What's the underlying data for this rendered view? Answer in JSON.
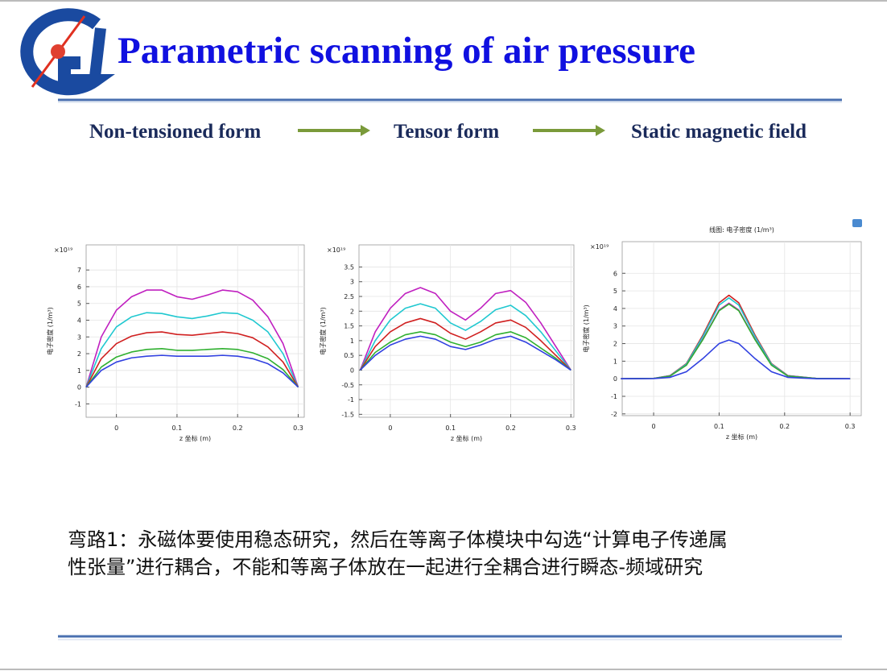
{
  "header": {
    "title": "Parametric scanning of air pressure"
  },
  "flow": [
    "Non-tensioned form",
    "Tensor form",
    "Static magnetic field"
  ],
  "chart_data": [
    {
      "type": "line",
      "multiplier": "×10¹⁹",
      "ylabel": "电子密度 (1/m³)",
      "xlabel": "z 坐标 (m)",
      "x": [
        -0.05,
        -0.025,
        0,
        0.025,
        0.05,
        0.075,
        0.1,
        0.125,
        0.15,
        0.175,
        0.2,
        0.225,
        0.25,
        0.275,
        0.3
      ],
      "series": [
        {
          "color": "#c020c0",
          "values": [
            0,
            3.0,
            4.6,
            5.4,
            5.8,
            5.8,
            5.4,
            5.25,
            5.5,
            5.8,
            5.7,
            5.2,
            4.2,
            2.6,
            0
          ]
        },
        {
          "color": "#20c8d0",
          "values": [
            0,
            2.3,
            3.6,
            4.2,
            4.45,
            4.4,
            4.2,
            4.1,
            4.25,
            4.45,
            4.4,
            4.0,
            3.3,
            2.0,
            0
          ]
        },
        {
          "color": "#d02020",
          "values": [
            0,
            1.7,
            2.6,
            3.05,
            3.25,
            3.3,
            3.15,
            3.1,
            3.2,
            3.3,
            3.2,
            2.95,
            2.4,
            1.5,
            0
          ]
        },
        {
          "color": "#30b030",
          "values": [
            0,
            1.2,
            1.8,
            2.1,
            2.25,
            2.3,
            2.2,
            2.2,
            2.25,
            2.3,
            2.25,
            2.05,
            1.7,
            1.05,
            0
          ]
        },
        {
          "color": "#3040e0",
          "values": [
            0,
            1.0,
            1.5,
            1.75,
            1.85,
            1.9,
            1.85,
            1.85,
            1.85,
            1.9,
            1.85,
            1.7,
            1.4,
            0.85,
            0
          ]
        }
      ],
      "xlim": [
        -0.05,
        0.31
      ],
      "ylim": [
        -1.8,
        8.5
      ],
      "xticks": [
        0,
        0.1,
        0.2,
        0.3
      ],
      "yticks": [
        -1,
        0,
        1,
        2,
        3,
        4,
        5,
        6,
        7
      ],
      "grid": true
    },
    {
      "type": "line",
      "multiplier": "×10¹⁹",
      "ylabel": "电子密度 (1/m³)",
      "xlabel": "z 坐标 (m)",
      "x": [
        -0.05,
        -0.025,
        0,
        0.025,
        0.05,
        0.075,
        0.1,
        0.125,
        0.15,
        0.175,
        0.2,
        0.225,
        0.25,
        0.275,
        0.3
      ],
      "series": [
        {
          "color": "#c020c0",
          "values": [
            0,
            1.3,
            2.1,
            2.6,
            2.8,
            2.6,
            2.0,
            1.7,
            2.1,
            2.6,
            2.7,
            2.3,
            1.6,
            0.8,
            0
          ]
        },
        {
          "color": "#20c8d0",
          "values": [
            0,
            1.0,
            1.7,
            2.1,
            2.25,
            2.1,
            1.6,
            1.35,
            1.65,
            2.05,
            2.2,
            1.85,
            1.3,
            0.65,
            0
          ]
        },
        {
          "color": "#d02020",
          "values": [
            0,
            0.8,
            1.3,
            1.6,
            1.75,
            1.6,
            1.25,
            1.05,
            1.3,
            1.6,
            1.7,
            1.45,
            1.0,
            0.5,
            0
          ]
        },
        {
          "color": "#30b030",
          "values": [
            0,
            0.6,
            0.95,
            1.2,
            1.3,
            1.2,
            0.95,
            0.8,
            0.95,
            1.2,
            1.3,
            1.1,
            0.75,
            0.4,
            0
          ]
        },
        {
          "color": "#3040e0",
          "values": [
            0,
            0.5,
            0.85,
            1.05,
            1.15,
            1.05,
            0.8,
            0.7,
            0.85,
            1.05,
            1.15,
            0.95,
            0.65,
            0.35,
            0
          ]
        }
      ],
      "xlim": [
        -0.052,
        0.305
      ],
      "ylim": [
        -1.6,
        4.25
      ],
      "xticks": [
        0,
        0.1,
        0.2,
        0.3
      ],
      "yticks": [
        -1.5,
        -1,
        -0.5,
        0,
        0.5,
        1,
        1.5,
        2,
        2.5,
        3,
        3.5
      ],
      "grid": true
    },
    {
      "type": "line",
      "title": "线图: 电子密度 (1/m³)",
      "multiplier": "×10¹⁹",
      "ylabel": "电子密度 (1/m³)",
      "xlabel": "z 坐标 (m)",
      "x": [
        -0.05,
        0,
        0.025,
        0.05,
        0.075,
        0.1,
        0.115,
        0.13,
        0.155,
        0.18,
        0.205,
        0.25,
        0.3
      ],
      "series": [
        {
          "color": "#d02020",
          "values": [
            0,
            0.02,
            0.18,
            0.86,
            2.47,
            4.32,
            4.75,
            4.32,
            2.47,
            0.86,
            0.18,
            0.01,
            0
          ]
        },
        {
          "color": "#20c8d0",
          "values": [
            0,
            0.02,
            0.17,
            0.83,
            2.39,
            4.19,
            4.6,
            4.19,
            2.39,
            0.83,
            0.17,
            0.01,
            0
          ]
        },
        {
          "color": "#c020c0",
          "values": [
            0,
            0.02,
            0.16,
            0.77,
            2.24,
            3.91,
            4.3,
            3.91,
            2.24,
            0.77,
            0.16,
            0.01,
            0
          ]
        },
        {
          "color": "#30b030",
          "values": [
            0,
            0.02,
            0.15,
            0.77,
            2.21,
            3.87,
            4.25,
            3.87,
            2.21,
            0.77,
            0.15,
            0.01,
            0
          ]
        },
        {
          "color": "#3040e0",
          "values": [
            0,
            0.01,
            0.08,
            0.4,
            1.14,
            2.0,
            2.2,
            2.0,
            1.14,
            0.4,
            0.08,
            0,
            0
          ]
        }
      ],
      "xlim": [
        -0.048,
        0.317
      ],
      "ylim": [
        -2.1,
        7.8
      ],
      "xticks": [
        0,
        0.1,
        0.2,
        0.3
      ],
      "yticks": [
        -2,
        -1,
        0,
        1,
        2,
        3,
        4,
        5,
        6
      ],
      "grid": true
    }
  ],
  "caption": {
    "lines": [
      "弯路1：永磁体要使用稳态研究，然后在等离子体模块中勾选“计算电子传递属",
      "性张量”进行耦合，不能和等离子体放在一起进行全耦合进行瞬态-频域研究"
    ]
  }
}
